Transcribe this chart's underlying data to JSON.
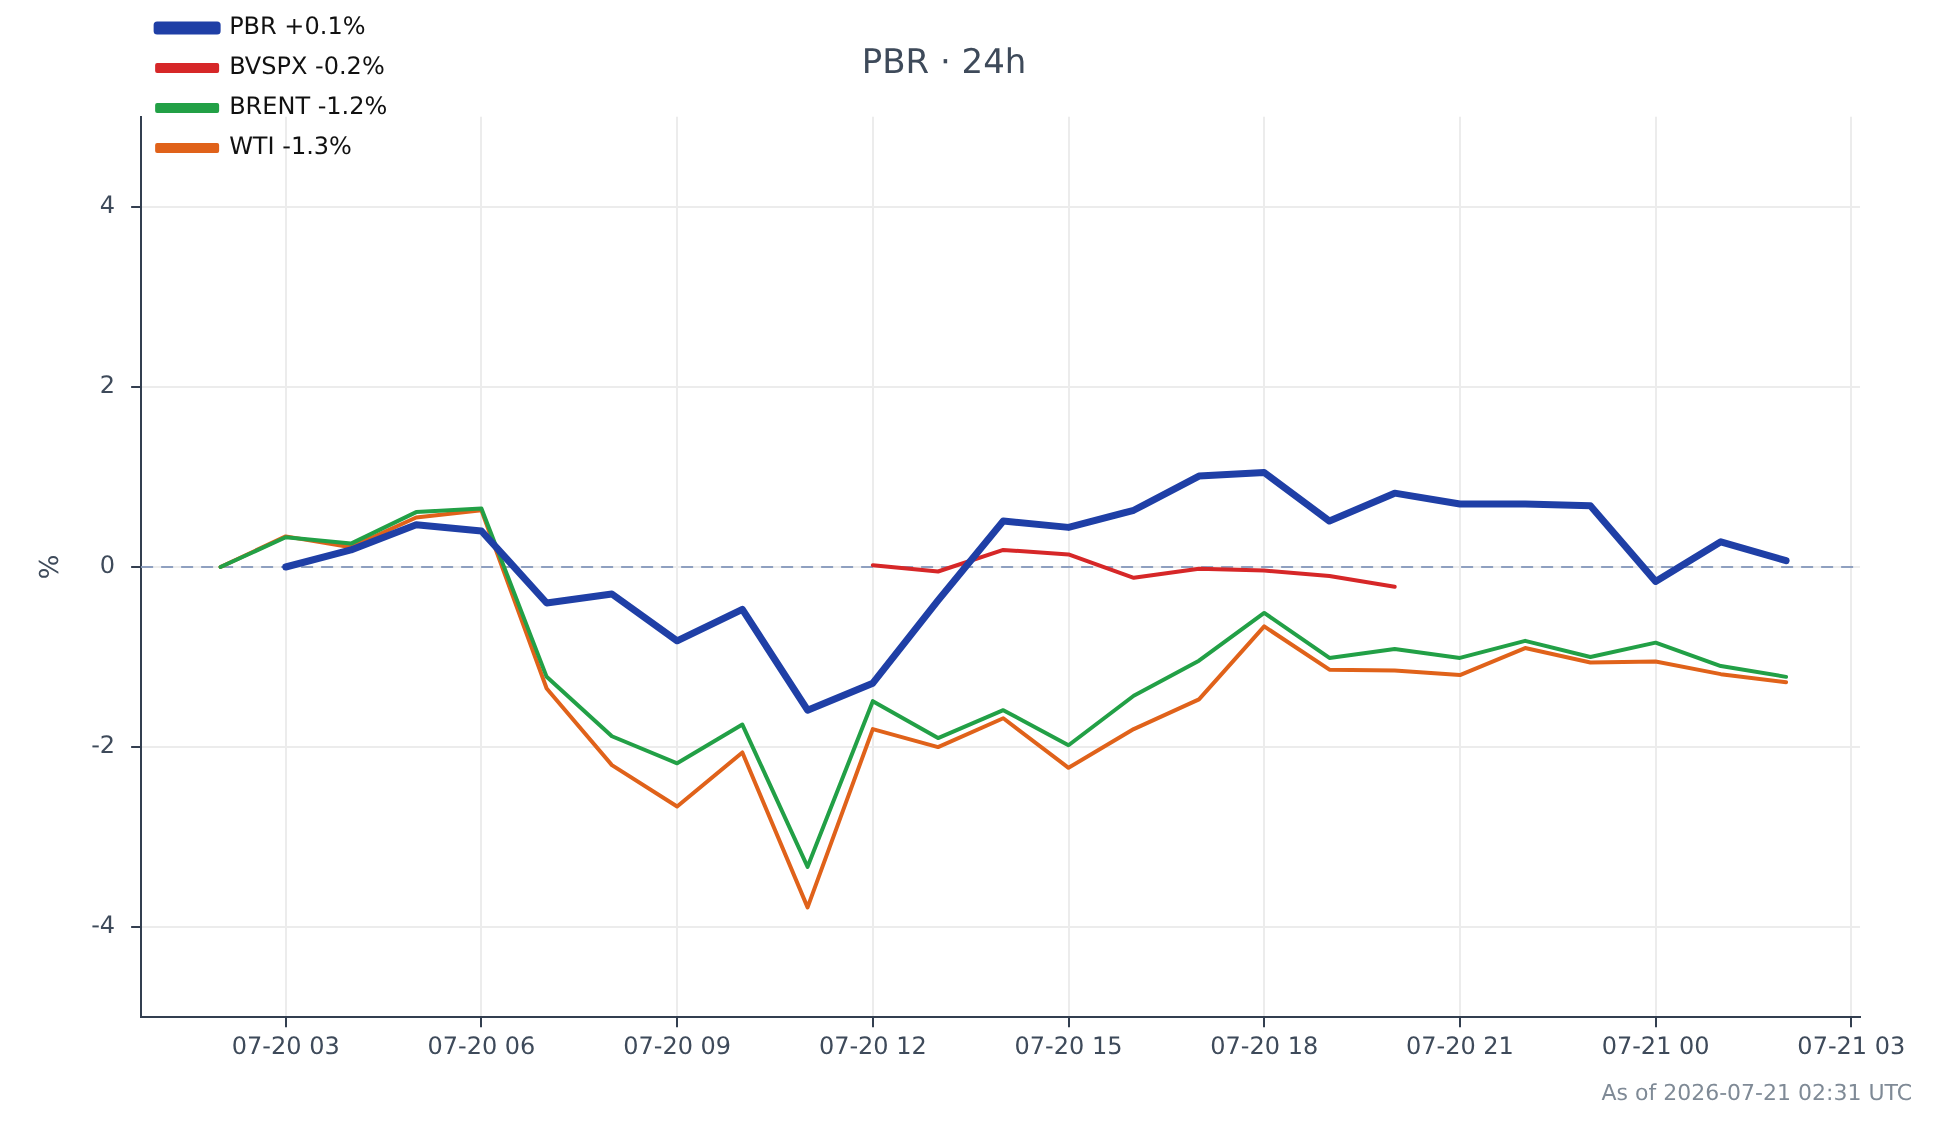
{
  "chart_data": {
    "type": "line",
    "title": "PBR · 24h",
    "ylabel": "%",
    "xlim": [
      "2026-07-20T00:47",
      "2026-07-21T03:08"
    ],
    "xticks": [
      {
        "value": "2026-07-20T03:00",
        "label": "07-20 03"
      },
      {
        "value": "2026-07-20T06:00",
        "label": "07-20 06"
      },
      {
        "value": "2026-07-20T09:00",
        "label": "07-20 09"
      },
      {
        "value": "2026-07-20T12:00",
        "label": "07-20 12"
      },
      {
        "value": "2026-07-20T15:00",
        "label": "07-20 15"
      },
      {
        "value": "2026-07-20T18:00",
        "label": "07-20 18"
      },
      {
        "value": "2026-07-20T21:00",
        "label": "07-20 21"
      },
      {
        "value": "2026-07-21T00:00",
        "label": "07-21 00"
      },
      {
        "value": "2026-07-21T03:00",
        "label": "07-21 03"
      }
    ],
    "ylim": [
      -5,
      5
    ],
    "yticks": [
      -4,
      -2,
      0,
      2,
      4
    ],
    "grid": true,
    "legend": "top left",
    "marker": "none",
    "line_style": "solid",
    "ref_lines": [
      {
        "axis": "y",
        "value": 0,
        "color": "#8fa0c0",
        "line_style": "dashed"
      }
    ],
    "annotations": [
      "As of 2026-07-21 02:31 UTC"
    ],
    "series": [
      {
        "name": "PBR +0.1%",
        "color": "#1f3fa6",
        "x": [
          "2026-07-20T03:00",
          "2026-07-20T04:00",
          "2026-07-20T05:00",
          "2026-07-20T06:00",
          "2026-07-20T07:00",
          "2026-07-20T08:00",
          "2026-07-20T09:00",
          "2026-07-20T10:00",
          "2026-07-20T11:00",
          "2026-07-20T12:00",
          "2026-07-20T13:00",
          "2026-07-20T14:00",
          "2026-07-20T15:00",
          "2026-07-20T16:00",
          "2026-07-20T17:00",
          "2026-07-20T18:00",
          "2026-07-20T19:00",
          "2026-07-20T20:00",
          "2026-07-20T21:00",
          "2026-07-20T22:00",
          "2026-07-20T23:00",
          "2026-07-21T00:00",
          "2026-07-21T01:00",
          "2026-07-21T02:00"
        ],
        "values": [
          0,
          0.19,
          0.47,
          0.4,
          -0.4,
          -0.3,
          -0.82,
          -0.47,
          -1.59,
          -1.29,
          -0.37,
          0.51,
          0.44,
          0.63,
          1.01,
          1.05,
          0.51,
          0.82,
          0.7,
          0.7,
          0.68,
          -0.16,
          0.28,
          0.07
        ]
      },
      {
        "name": "BVSPX -0.2%",
        "color": "#d62728",
        "x": [
          "2026-07-20T12:00",
          "2026-07-20T13:00",
          "2026-07-20T14:00",
          "2026-07-20T15:00",
          "2026-07-20T16:00",
          "2026-07-20T17:00",
          "2026-07-20T18:00",
          "2026-07-20T19:00",
          "2026-07-20T20:00"
        ],
        "values": [
          0.02,
          -0.05,
          0.19,
          0.14,
          -0.12,
          -0.02,
          -0.04,
          -0.1,
          -0.22
        ]
      },
      {
        "name": "BRENT -1.2%",
        "color": "#22a046",
        "x": [
          "2026-07-20T02:00",
          "2026-07-20T03:00",
          "2026-07-20T04:00",
          "2026-07-20T05:00",
          "2026-07-20T06:00",
          "2026-07-20T07:00",
          "2026-07-20T08:00",
          "2026-07-20T09:00",
          "2026-07-20T10:00",
          "2026-07-20T11:00",
          "2026-07-20T12:00",
          "2026-07-20T13:00",
          "2026-07-20T14:00",
          "2026-07-20T15:00",
          "2026-07-20T16:00",
          "2026-07-20T17:00",
          "2026-07-20T18:00",
          "2026-07-20T19:00",
          "2026-07-20T20:00",
          "2026-07-20T21:00",
          "2026-07-20T22:00",
          "2026-07-20T23:00",
          "2026-07-21T00:00",
          "2026-07-21T01:00",
          "2026-07-21T02:00"
        ],
        "values": [
          0,
          0.33,
          0.26,
          0.61,
          0.65,
          -1.22,
          -1.88,
          -2.18,
          -1.75,
          -3.33,
          -1.49,
          -1.9,
          -1.59,
          -1.98,
          -1.43,
          -1.04,
          -0.51,
          -1.01,
          -0.91,
          -1.01,
          -0.82,
          -1,
          -0.84,
          -1.1,
          -1.22
        ]
      },
      {
        "name": "WTI -1.3%",
        "color": "#e0621a",
        "x": [
          "2026-07-20T02:00",
          "2026-07-20T03:00",
          "2026-07-20T04:00",
          "2026-07-20T05:00",
          "2026-07-20T06:00",
          "2026-07-20T07:00",
          "2026-07-20T08:00",
          "2026-07-20T09:00",
          "2026-07-20T10:00",
          "2026-07-20T11:00",
          "2026-07-20T12:00",
          "2026-07-20T13:00",
          "2026-07-20T14:00",
          "2026-07-20T15:00",
          "2026-07-20T16:00",
          "2026-07-20T17:00",
          "2026-07-20T18:00",
          "2026-07-20T19:00",
          "2026-07-20T20:00",
          "2026-07-20T21:00",
          "2026-07-20T22:00",
          "2026-07-20T23:00",
          "2026-07-21T00:00",
          "2026-07-21T01:00",
          "2026-07-21T02:00"
        ],
        "values": [
          0,
          0.34,
          0.22,
          0.55,
          0.63,
          -1.35,
          -2.2,
          -2.66,
          -2.06,
          -3.78,
          -1.8,
          -2,
          -1.68,
          -2.23,
          -1.8,
          -1.47,
          -0.66,
          -1.14,
          -1.15,
          -1.2,
          -0.9,
          -1.06,
          -1.05,
          -1.19,
          -1.28
        ]
      }
    ]
  }
}
